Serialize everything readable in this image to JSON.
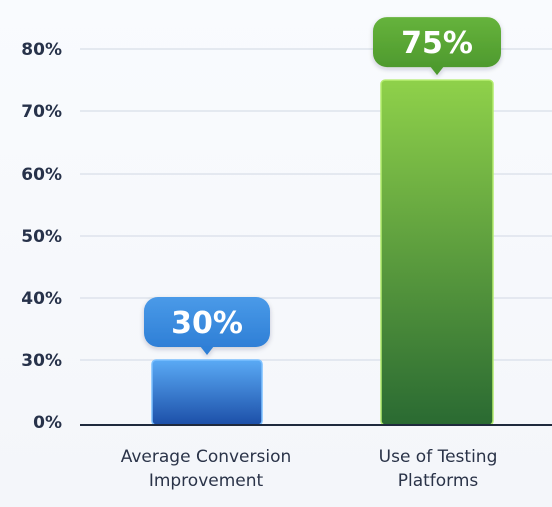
{
  "chart_data": {
    "type": "bar",
    "categories": [
      "Average Conversion Improvement",
      "Use of Testing Platforms"
    ],
    "category_lines": [
      [
        "Average Conversion",
        "Improvement"
      ],
      [
        "Use of Testing",
        "Platforms"
      ]
    ],
    "values": [
      30,
      75
    ],
    "data_labels": [
      "30%",
      "75%"
    ],
    "y_ticks": [
      {
        "label": "0%"
      },
      {
        "label": "30%"
      },
      {
        "label": "40%"
      },
      {
        "label": "50%"
      },
      {
        "label": "60%"
      },
      {
        "label": "70%"
      },
      {
        "label": "80%"
      }
    ],
    "grid": true,
    "colors": {
      "bar1_top": "#5aaaf5",
      "bar1_bottom": "#1c4fa8",
      "bar2_top": "#8fd14a",
      "bar2_bottom": "#2a6a32",
      "label1_bg": "#2f7fd6",
      "label2_bg": "#4e9a2e",
      "grid": "#dde3ec",
      "axis": "#1f2a3d"
    }
  }
}
